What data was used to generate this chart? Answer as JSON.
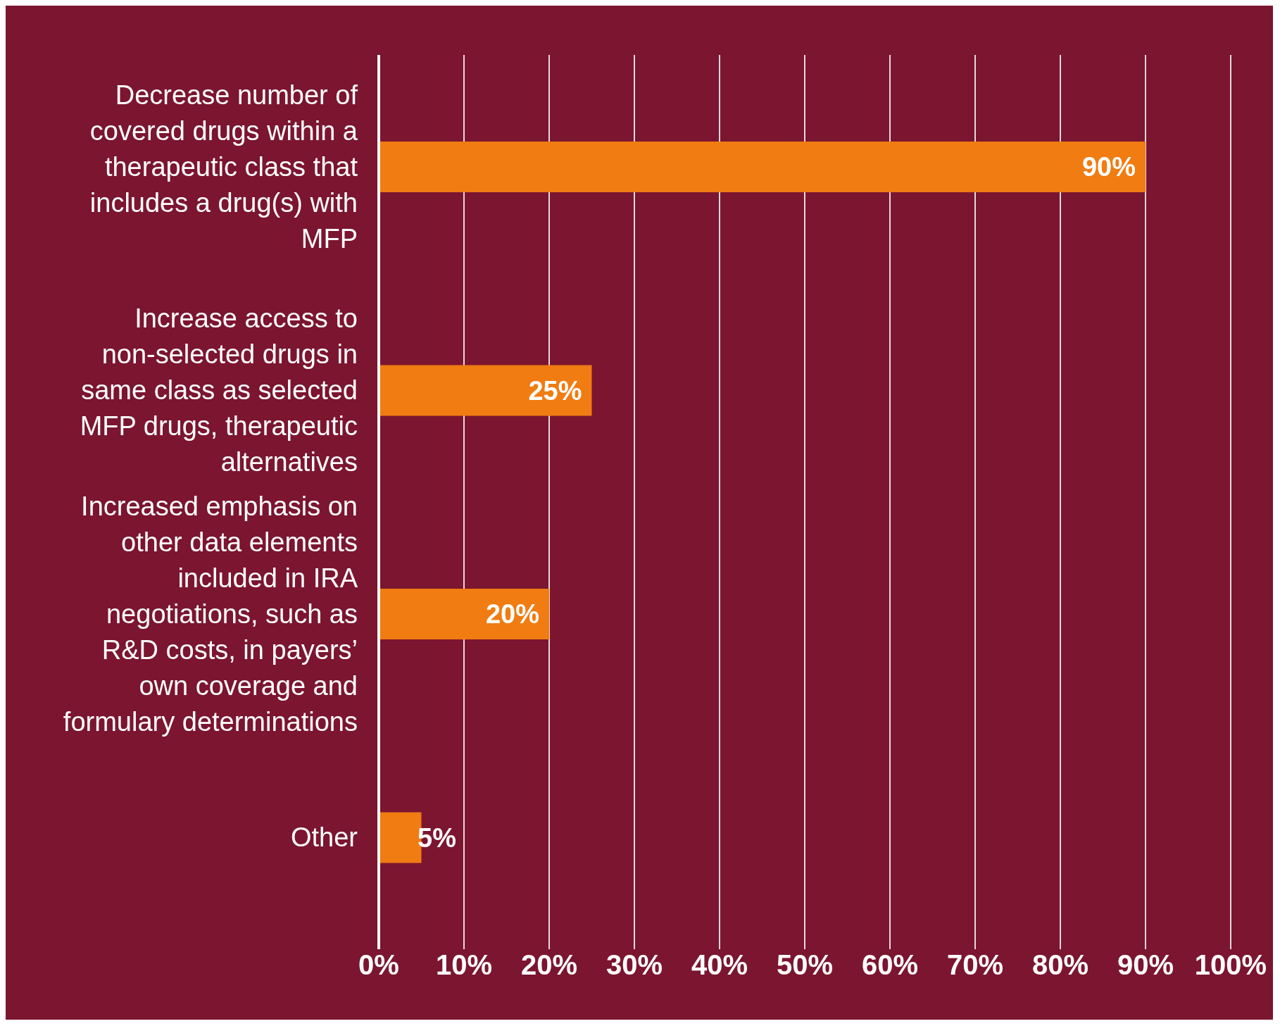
{
  "chart_data": {
    "type": "bar",
    "orientation": "horizontal",
    "categories": [
      "Decrease number of covered drugs within a therapeutic class that includes a drug(s) with MFP",
      "Increase access to non-selected drugs in same class as selected MFP drugs, therapeutic alternatives",
      "Increased emphasis on other data elements included in IRA negotiations, such as R&D costs, in payers’ own coverage and formulary determinations",
      "Other"
    ],
    "values": [
      90,
      25,
      20,
      5
    ],
    "value_labels": [
      "90%",
      "25%",
      "20%",
      "5%"
    ],
    "color": "#f07c12",
    "xlim": [
      0,
      100
    ],
    "xticks": [
      {
        "value": 0,
        "label": "0%"
      },
      {
        "value": 10,
        "label": "10%"
      },
      {
        "value": 20,
        "label": "20%"
      },
      {
        "value": 30,
        "label": "30%"
      },
      {
        "value": 40,
        "label": "40%"
      },
      {
        "value": 50,
        "label": "50%"
      },
      {
        "value": 60,
        "label": "60%"
      },
      {
        "value": 70,
        "label": "70%"
      },
      {
        "value": 80,
        "label": "80%"
      },
      {
        "value": 90,
        "label": "90%"
      },
      {
        "value": 100,
        "label": "100%"
      }
    ],
    "grid": "x",
    "legend": false
  }
}
